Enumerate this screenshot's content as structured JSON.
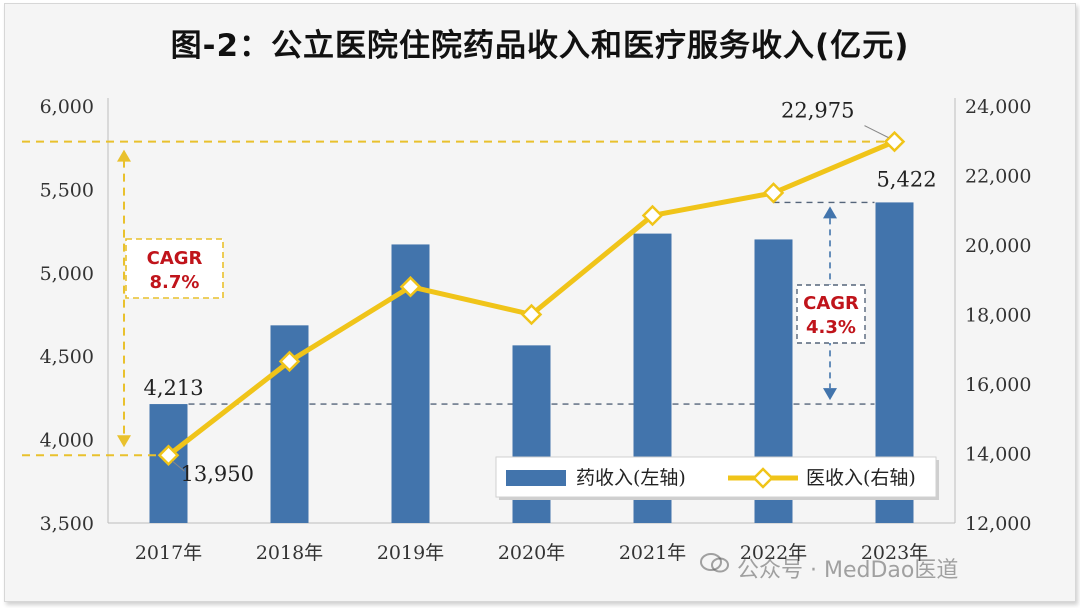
{
  "title": "图-2：公立医院住院药品收入和医疗服务收入(亿元)",
  "watermark": "公众号 · MedDao医道",
  "chart_data": {
    "type": "bar",
    "categories": [
      "2017年",
      "2018年",
      "2019年",
      "2020年",
      "2021年",
      "2022年",
      "2023年"
    ],
    "series": [
      {
        "name": "药收入(左轴)",
        "type": "bar",
        "axis": "left",
        "color": "#4274ac",
        "values": [
          4213,
          4685,
          5170,
          4565,
          5235,
          5200,
          5422
        ]
      },
      {
        "name": "医收入(右轴)",
        "type": "line",
        "axis": "right",
        "color": "#f0c419",
        "values": [
          13950,
          16650,
          18800,
          18000,
          20850,
          21500,
          22975
        ]
      }
    ],
    "y_left": {
      "min": 3500,
      "max": 6000,
      "ticks": [
        "3,500",
        "4,000",
        "4,500",
        "5,000",
        "5,500",
        "6,000"
      ]
    },
    "y_right": {
      "min": 12000,
      "max": 24000,
      "ticks": [
        "12,000",
        "14,000",
        "16,000",
        "18,000",
        "20,000",
        "22,000",
        "24,000"
      ]
    },
    "data_labels": {
      "bar_first": "4,213",
      "bar_last": "5,422",
      "line_first": "13,950",
      "line_last": "22,975"
    },
    "annotations": [
      {
        "text": "CAGR",
        "value": "8.7%",
        "series": "医收入(右轴)",
        "color": "#c0141b"
      },
      {
        "text": "CAGR",
        "value": "4.3%",
        "series": "药收入(左轴)",
        "color": "#c0141b"
      }
    ],
    "legend": "bottom-right",
    "grid": false
  }
}
